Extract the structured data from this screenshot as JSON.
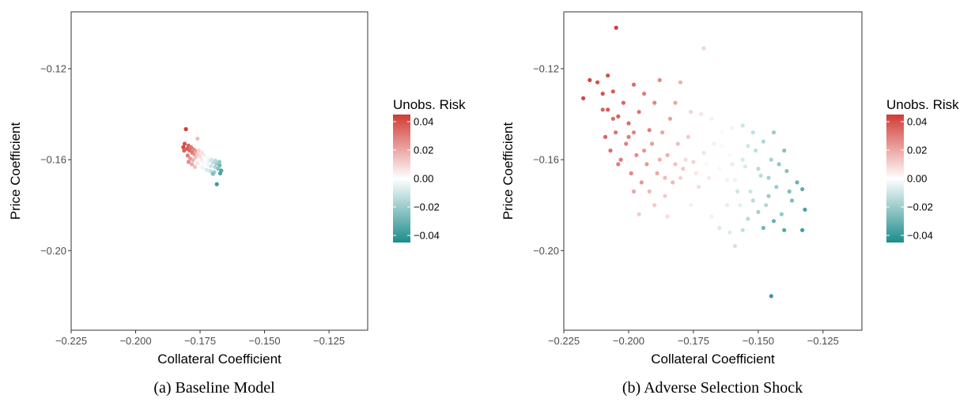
{
  "colors": {
    "high": "#d13b35",
    "mid": "#ffffff",
    "low": "#1e8c8c",
    "panel_border": "#333333",
    "tick": "#333333"
  },
  "chart_data": [
    {
      "type": "scatter",
      "caption": "(a) Baseline Model",
      "xlabel": "Collateral Coefficient",
      "ylabel": "Price Coefficient",
      "xlim": [
        -0.225,
        -0.11
      ],
      "ylim": [
        -0.235,
        -0.095
      ],
      "xticks": [
        -0.225,
        -0.2,
        -0.175,
        -0.15,
        -0.125
      ],
      "xtick_labels": [
        "−0.225",
        "−0.200",
        "−0.175",
        "−0.150",
        "−0.125"
      ],
      "yticks": [
        -0.12,
        -0.16,
        -0.2
      ],
      "ytick_labels": [
        "−0.12",
        "−0.16",
        "−0.20"
      ],
      "grid": false,
      "legend": {
        "title": "Unobs. Risk",
        "position": "right",
        "range": [
          -0.045,
          0.045
        ],
        "ticks": [
          0.04,
          0.02,
          0.0,
          -0.02,
          -0.04
        ],
        "tick_labels": [
          "0.04",
          "0.02",
          "0.00",
          "−0.02",
          "−0.04"
        ]
      },
      "points": [
        [
          -0.1805,
          -0.1466,
          0.045
        ],
        [
          -0.1815,
          -0.1545,
          0.042
        ],
        [
          -0.181,
          -0.153,
          0.04
        ],
        [
          -0.18,
          -0.1552,
          0.038
        ],
        [
          -0.1795,
          -0.1538,
          0.036
        ],
        [
          -0.179,
          -0.156,
          0.034
        ],
        [
          -0.1785,
          -0.1545,
          0.032
        ],
        [
          -0.178,
          -0.157,
          0.03
        ],
        [
          -0.1775,
          -0.1555,
          0.028
        ],
        [
          -0.177,
          -0.1578,
          0.025
        ],
        [
          -0.1765,
          -0.1562,
          0.022
        ],
        [
          -0.1798,
          -0.1582,
          0.03
        ],
        [
          -0.1788,
          -0.1595,
          0.024
        ],
        [
          -0.1778,
          -0.1602,
          0.018
        ],
        [
          -0.1768,
          -0.159,
          0.014
        ],
        [
          -0.176,
          -0.1575,
          0.012
        ],
        [
          -0.1752,
          -0.1585,
          0.009
        ],
        [
          -0.1745,
          -0.16,
          0.005
        ],
        [
          -0.1738,
          -0.1612,
          0.002
        ],
        [
          -0.173,
          -0.1595,
          0.0
        ],
        [
          -0.1722,
          -0.162,
          -0.003
        ],
        [
          -0.1715,
          -0.1605,
          -0.006
        ],
        [
          -0.1708,
          -0.1628,
          -0.01
        ],
        [
          -0.17,
          -0.1612,
          -0.013
        ],
        [
          -0.1692,
          -0.1632,
          -0.017
        ],
        [
          -0.1686,
          -0.1618,
          -0.02
        ],
        [
          -0.168,
          -0.164,
          -0.024
        ],
        [
          -0.1674,
          -0.1625,
          -0.028
        ],
        [
          -0.1668,
          -0.1648,
          -0.034
        ],
        [
          -0.174,
          -0.1635,
          -0.004
        ],
        [
          -0.1725,
          -0.1645,
          -0.008
        ],
        [
          -0.171,
          -0.165,
          -0.012
        ],
        [
          -0.1695,
          -0.1655,
          -0.018
        ],
        [
          -0.176,
          -0.1615,
          0.006
        ],
        [
          -0.175,
          -0.1628,
          0.002
        ],
        [
          -0.1735,
          -0.158,
          0.004
        ],
        [
          -0.1755,
          -0.156,
          0.01
        ],
        [
          -0.1742,
          -0.157,
          0.007
        ],
        [
          -0.172,
          -0.159,
          -0.002
        ],
        [
          -0.1705,
          -0.16,
          -0.009
        ],
        [
          -0.169,
          -0.1605,
          -0.015
        ],
        [
          -0.1675,
          -0.161,
          -0.022
        ],
        [
          -0.1685,
          -0.1708,
          -0.04
        ],
        [
          -0.176,
          -0.1508,
          0.015
        ],
        [
          -0.1812,
          -0.156,
          0.036
        ],
        [
          -0.1795,
          -0.161,
          0.026
        ],
        [
          -0.1782,
          -0.162,
          0.02
        ],
        [
          -0.177,
          -0.1632,
          0.015
        ],
        [
          -0.1672,
          -0.166,
          -0.036
        ],
        [
          -0.17,
          -0.1662,
          -0.026
        ]
      ]
    },
    {
      "type": "scatter",
      "caption": "(b) Adverse Selection Shock",
      "xlabel": "Collateral Coefficient",
      "ylabel": "Price Coefficient",
      "xlim": [
        -0.225,
        -0.11
      ],
      "ylim": [
        -0.235,
        -0.095
      ],
      "xticks": [
        -0.225,
        -0.2,
        -0.175,
        -0.15,
        -0.125
      ],
      "xtick_labels": [
        "−0.225",
        "−0.200",
        "−0.175",
        "−0.150",
        "−0.125"
      ],
      "yticks": [
        -0.12,
        -0.16,
        -0.2
      ],
      "ytick_labels": [
        "−0.12",
        "−0.16",
        "−0.20"
      ],
      "grid": false,
      "legend": {
        "title": "Unobs. Risk",
        "position": "right",
        "range": [
          -0.045,
          0.045
        ],
        "ticks": [
          0.04,
          0.02,
          0.0,
          -0.02,
          -0.04
        ],
        "tick_labels": [
          "0.04",
          "0.02",
          "0.00",
          "−0.02",
          "−0.04"
        ]
      },
      "points": [
        [
          -0.2048,
          -0.102,
          0.045
        ],
        [
          -0.215,
          -0.125,
          0.042
        ],
        [
          -0.2175,
          -0.133,
          0.042
        ],
        [
          -0.212,
          -0.126,
          0.04
        ],
        [
          -0.21,
          -0.131,
          0.04
        ],
        [
          -0.208,
          -0.138,
          0.038
        ],
        [
          -0.206,
          -0.13,
          0.038
        ],
        [
          -0.204,
          -0.141,
          0.036
        ],
        [
          -0.202,
          -0.135,
          0.035
        ],
        [
          -0.2,
          -0.144,
          0.034
        ],
        [
          -0.198,
          -0.127,
          0.034
        ],
        [
          -0.196,
          -0.139,
          0.032
        ],
        [
          -0.194,
          -0.131,
          0.03
        ],
        [
          -0.192,
          -0.147,
          0.03
        ],
        [
          -0.19,
          -0.135,
          0.028
        ],
        [
          -0.188,
          -0.125,
          0.027
        ],
        [
          -0.209,
          -0.15,
          0.036
        ],
        [
          -0.207,
          -0.156,
          0.033
        ],
        [
          -0.205,
          -0.148,
          0.032
        ],
        [
          -0.203,
          -0.16,
          0.03
        ],
        [
          -0.201,
          -0.153,
          0.029
        ],
        [
          -0.199,
          -0.166,
          0.027
        ],
        [
          -0.197,
          -0.158,
          0.026
        ],
        [
          -0.195,
          -0.17,
          0.024
        ],
        [
          -0.193,
          -0.162,
          0.023
        ],
        [
          -0.191,
          -0.153,
          0.022
        ],
        [
          -0.189,
          -0.166,
          0.02
        ],
        [
          -0.187,
          -0.148,
          0.02
        ],
        [
          -0.185,
          -0.158,
          0.018
        ],
        [
          -0.183,
          -0.17,
          0.016
        ],
        [
          -0.181,
          -0.153,
          0.015
        ],
        [
          -0.179,
          -0.164,
          0.013
        ],
        [
          -0.177,
          -0.15,
          0.012
        ],
        [
          -0.175,
          -0.161,
          0.01
        ],
        [
          -0.173,
          -0.172,
          0.008
        ],
        [
          -0.171,
          -0.157,
          0.007
        ],
        [
          -0.169,
          -0.168,
          0.005
        ],
        [
          -0.167,
          -0.153,
          0.004
        ],
        [
          -0.165,
          -0.164,
          0.002
        ],
        [
          -0.163,
          -0.175,
          0.0
        ],
        [
          -0.161,
          -0.158,
          -0.002
        ],
        [
          -0.159,
          -0.169,
          -0.004
        ],
        [
          -0.157,
          -0.18,
          -0.006
        ],
        [
          -0.155,
          -0.163,
          -0.008
        ],
        [
          -0.153,
          -0.174,
          -0.01
        ],
        [
          -0.151,
          -0.156,
          -0.012
        ],
        [
          -0.149,
          -0.167,
          -0.014
        ],
        [
          -0.147,
          -0.18,
          -0.016
        ],
        [
          -0.145,
          -0.16,
          -0.018
        ],
        [
          -0.143,
          -0.172,
          -0.02
        ],
        [
          -0.141,
          -0.184,
          -0.022
        ],
        [
          -0.139,
          -0.165,
          -0.024
        ],
        [
          -0.137,
          -0.178,
          -0.026
        ],
        [
          -0.135,
          -0.17,
          -0.03
        ],
        [
          -0.133,
          -0.173,
          -0.032
        ],
        [
          -0.132,
          -0.182,
          -0.036
        ],
        [
          -0.133,
          -0.191,
          -0.038
        ],
        [
          -0.14,
          -0.191,
          -0.034
        ],
        [
          -0.144,
          -0.187,
          -0.03
        ],
        [
          -0.148,
          -0.19,
          -0.028
        ],
        [
          -0.145,
          -0.22,
          -0.04
        ],
        [
          -0.159,
          -0.198,
          -0.01
        ],
        [
          -0.161,
          -0.192,
          -0.008
        ],
        [
          -0.171,
          -0.111,
          0.01
        ],
        [
          -0.18,
          -0.126,
          0.018
        ],
        [
          -0.182,
          -0.135,
          0.02
        ],
        [
          -0.184,
          -0.142,
          0.022
        ],
        [
          -0.196,
          -0.184,
          0.012
        ],
        [
          -0.19,
          -0.18,
          0.012
        ],
        [
          -0.185,
          -0.185,
          0.008
        ],
        [
          -0.186,
          -0.176,
          0.012
        ],
        [
          -0.176,
          -0.18,
          0.004
        ],
        [
          -0.168,
          -0.185,
          -0.004
        ],
        [
          -0.165,
          -0.19,
          -0.008
        ],
        [
          -0.156,
          -0.191,
          -0.012
        ],
        [
          -0.154,
          -0.186,
          -0.014
        ],
        [
          -0.15,
          -0.183,
          -0.018
        ],
        [
          -0.146,
          -0.176,
          -0.02
        ],
        [
          -0.142,
          -0.162,
          -0.022
        ],
        [
          -0.14,
          -0.156,
          -0.024
        ],
        [
          -0.144,
          -0.148,
          -0.02
        ],
        [
          -0.148,
          -0.152,
          -0.016
        ],
        [
          -0.152,
          -0.148,
          -0.012
        ],
        [
          -0.156,
          -0.145,
          -0.01
        ],
        [
          -0.16,
          -0.146,
          -0.004
        ],
        [
          -0.164,
          -0.148,
          -0.002
        ],
        [
          -0.168,
          -0.142,
          0.004
        ],
        [
          -0.172,
          -0.14,
          0.006
        ],
        [
          -0.176,
          -0.139,
          0.01
        ],
        [
          -0.194,
          -0.156,
          0.024
        ],
        [
          -0.2,
          -0.15,
          0.03
        ],
        [
          -0.204,
          -0.162,
          0.03
        ],
        [
          -0.198,
          -0.174,
          0.02
        ],
        [
          -0.192,
          -0.174,
          0.016
        ],
        [
          -0.18,
          -0.168,
          0.01
        ],
        [
          -0.174,
          -0.166,
          0.006
        ],
        [
          -0.166,
          -0.171,
          0.0
        ],
        [
          -0.162,
          -0.169,
          -0.004
        ],
        [
          -0.158,
          -0.174,
          -0.01
        ],
        [
          -0.152,
          -0.178,
          -0.014
        ],
        [
          -0.16,
          -0.162,
          -0.006
        ],
        [
          -0.156,
          -0.16,
          -0.008
        ],
        [
          -0.17,
          -0.162,
          0.002
        ],
        [
          -0.178,
          -0.16,
          0.008
        ],
        [
          -0.182,
          -0.162,
          0.014
        ],
        [
          -0.188,
          -0.16,
          0.018
        ],
        [
          -0.186,
          -0.168,
          0.016
        ],
        [
          -0.206,
          -0.142,
          0.034
        ],
        [
          -0.21,
          -0.138,
          0.036
        ],
        [
          -0.208,
          -0.123,
          0.04
        ],
        [
          -0.198,
          -0.148,
          0.028
        ],
        [
          -0.164,
          -0.154,
          -0.002
        ],
        [
          -0.15,
          -0.164,
          -0.014
        ],
        [
          -0.146,
          -0.168,
          -0.018
        ],
        [
          -0.138,
          -0.174,
          -0.026
        ],
        [
          -0.154,
          -0.154,
          -0.01
        ],
        [
          -0.162,
          -0.18,
          -0.006
        ]
      ]
    }
  ]
}
